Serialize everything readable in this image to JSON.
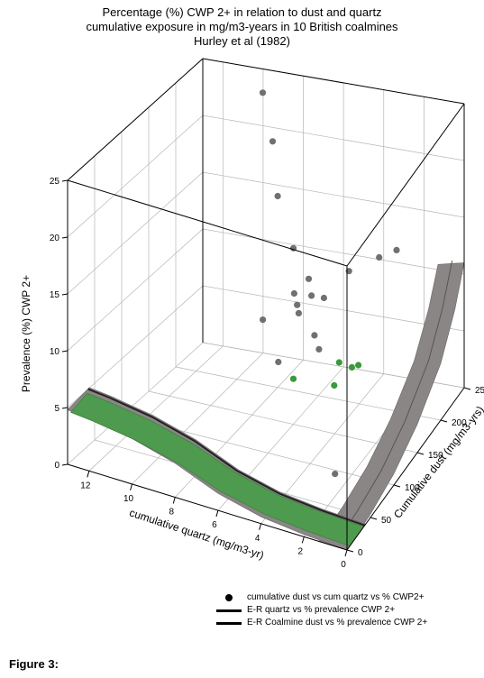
{
  "title_lines": [
    "Percentage (%) CWP 2+ in relation to dust and quartz",
    "cumulative exposure in mg/m3-years in 10 British coalmines",
    "Hurley et al (1982)"
  ],
  "figure_caption": "Figure 3:",
  "chart_data": {
    "type": "scatter",
    "dimensions": "3d",
    "axes": {
      "x": {
        "label": "cumulative quartz (mg/m3-yr)",
        "range": [
          0,
          13
        ],
        "ticks": [
          "0",
          "2",
          "4",
          "6",
          "8",
          "10",
          "12"
        ]
      },
      "y": {
        "label": "Cumulative dust (mg/m3-yrs)",
        "range": [
          0,
          250
        ],
        "ticks": [
          "0",
          "50",
          "100",
          "150",
          "200",
          "250"
        ]
      },
      "z": {
        "label": "Prevalence (%) CWP 2+",
        "range": [
          0,
          25
        ],
        "ticks": [
          "0",
          "5",
          "10",
          "15",
          "20",
          "25"
        ]
      }
    },
    "grid": true,
    "legend": {
      "position": "bottom-right",
      "entries": [
        {
          "symbol": "dot",
          "label": "cumulative dust vs cum quartz vs % CWP2+"
        },
        {
          "symbol": "line",
          "label": "E-R quartz vs % prevalence CWP 2+"
        },
        {
          "symbol": "line",
          "label": "E-R Coalmine dust vs % prevalence CWP 2+"
        }
      ]
    },
    "series": [
      {
        "name": "cumulative dust vs cum quartz vs % CWP2+",
        "color": "#707070",
        "points": [
          {
            "x": 9.5,
            "y": 230,
            "z": 24.0
          },
          {
            "x": 8.5,
            "y": 210,
            "z": 21.0
          },
          {
            "x": 7.5,
            "y": 180,
            "z": 18.0
          },
          {
            "x": 6.0,
            "y": 150,
            "z": 15.5
          },
          {
            "x": 5.0,
            "y": 110,
            "z": 14.0
          },
          {
            "x": 4.5,
            "y": 95,
            "z": 14.0
          },
          {
            "x": 5.5,
            "y": 160,
            "z": 12.5
          },
          {
            "x": 5.0,
            "y": 145,
            "z": 12.0
          },
          {
            "x": 4.5,
            "y": 200,
            "z": 11.5
          },
          {
            "x": 3.5,
            "y": 220,
            "z": 12.0
          },
          {
            "x": 3.0,
            "y": 235,
            "z": 12.0
          },
          {
            "x": 6.5,
            "y": 110,
            "z": 11.0
          },
          {
            "x": 5.5,
            "y": 140,
            "z": 10.5
          },
          {
            "x": 5.0,
            "y": 170,
            "z": 10.5
          },
          {
            "x": 4.5,
            "y": 130,
            "z": 9.5
          },
          {
            "x": 6.0,
            "y": 120,
            "z": 7.0
          },
          {
            "x": 5.0,
            "y": 160,
            "z": 6.5
          },
          {
            "x": 1.0,
            "y": 20,
            "z": 5.0
          }
        ]
      },
      {
        "name": "green markers",
        "color": "#3a9a3a",
        "points": [
          {
            "x": 4.5,
            "y": 180,
            "z": 4.5
          },
          {
            "x": 4.0,
            "y": 185,
            "z": 4.0
          },
          {
            "x": 3.8,
            "y": 190,
            "z": 4.0
          },
          {
            "x": 6.0,
            "y": 150,
            "z": 4.0
          },
          {
            "x": 4.5,
            "y": 170,
            "z": 3.0
          }
        ]
      }
    ],
    "surfaces": [
      {
        "name": "E-R quartz vs % prevalence CWP 2+",
        "axis": "x",
        "fill": "#4e9a4e",
        "profile_x": [
          0,
          2,
          4,
          6,
          8,
          10,
          12,
          13
        ],
        "profile_z": [
          0,
          0.2,
          0.6,
          1.5,
          3.0,
          4.0,
          4.6,
          4.8
        ]
      },
      {
        "name": "E-R Coalmine dust vs % prevalence CWP 2+",
        "axis": "y",
        "fill": "#8a8686",
        "profile_y": [
          0,
          50,
          100,
          150,
          200,
          230,
          250
        ],
        "profile_z": [
          0,
          0.3,
          1.0,
          2.5,
          5.0,
          8.0,
          11.0
        ]
      }
    ]
  }
}
